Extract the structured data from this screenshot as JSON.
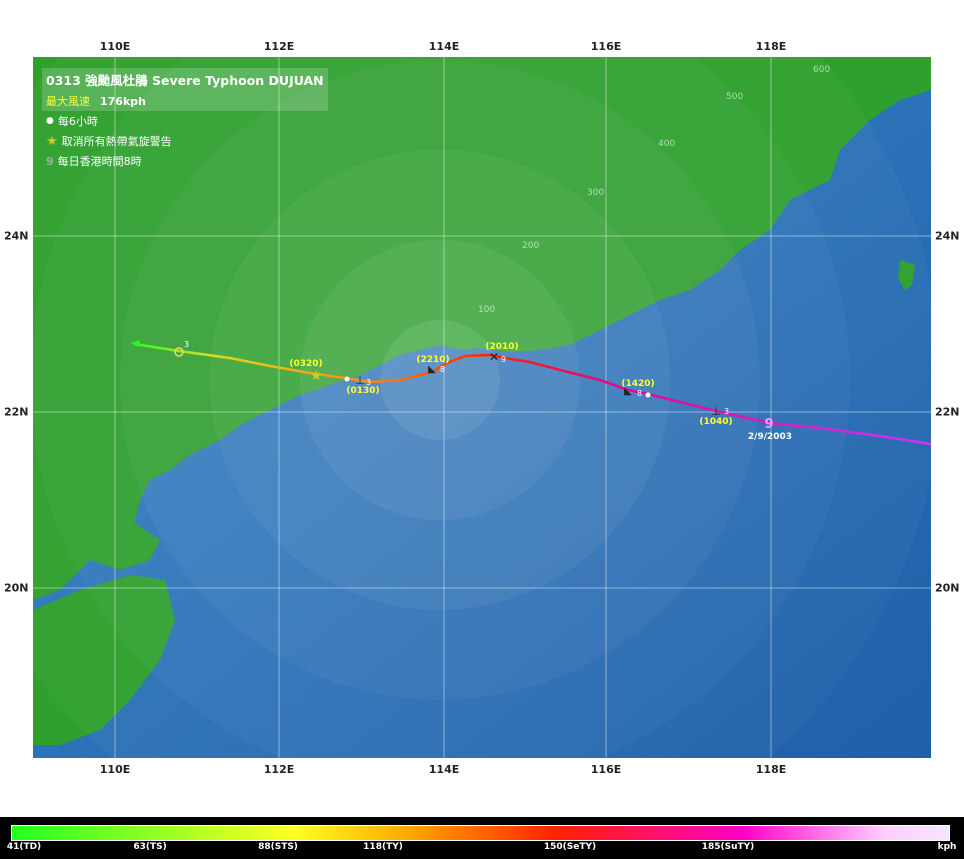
{
  "legend": {
    "title": "0313  強颱風杜鵑  Severe Typhoon DUJUAN",
    "max_wind_label": "最大風速",
    "max_wind_value": "176kph",
    "item_6h": "每6小時",
    "item_cancel": "取消所有熱帶氣旋警告",
    "item_daily": "每日香港時間8時"
  },
  "axes": {
    "lon_labels": [
      "110E",
      "112E",
      "114E",
      "116E",
      "118E"
    ],
    "lat_labels": [
      "24N",
      "22N",
      "20N"
    ]
  },
  "track_labels": {
    "start_date": "2/9/2003",
    "times": [
      "(1040)",
      "(1420)",
      "(2010)",
      "(2210)",
      "(0130)",
      "(0320)"
    ],
    "day_marks": [
      "9",
      "3",
      "8",
      "9",
      "8",
      "3",
      "3"
    ]
  },
  "range_rings": [
    "100",
    "200",
    "300",
    "400",
    "500",
    "600"
  ],
  "colorbar": {
    "ticks": [
      "41(TD)",
      "63(TS)",
      "88(STS)",
      "118(TY)",
      "150(SeTY)",
      "185(SuTY)"
    ],
    "unit": "kph"
  },
  "colors": {
    "sea": "#2e6fb8",
    "land": "#2ea02e",
    "grid": "#ffffff"
  }
}
